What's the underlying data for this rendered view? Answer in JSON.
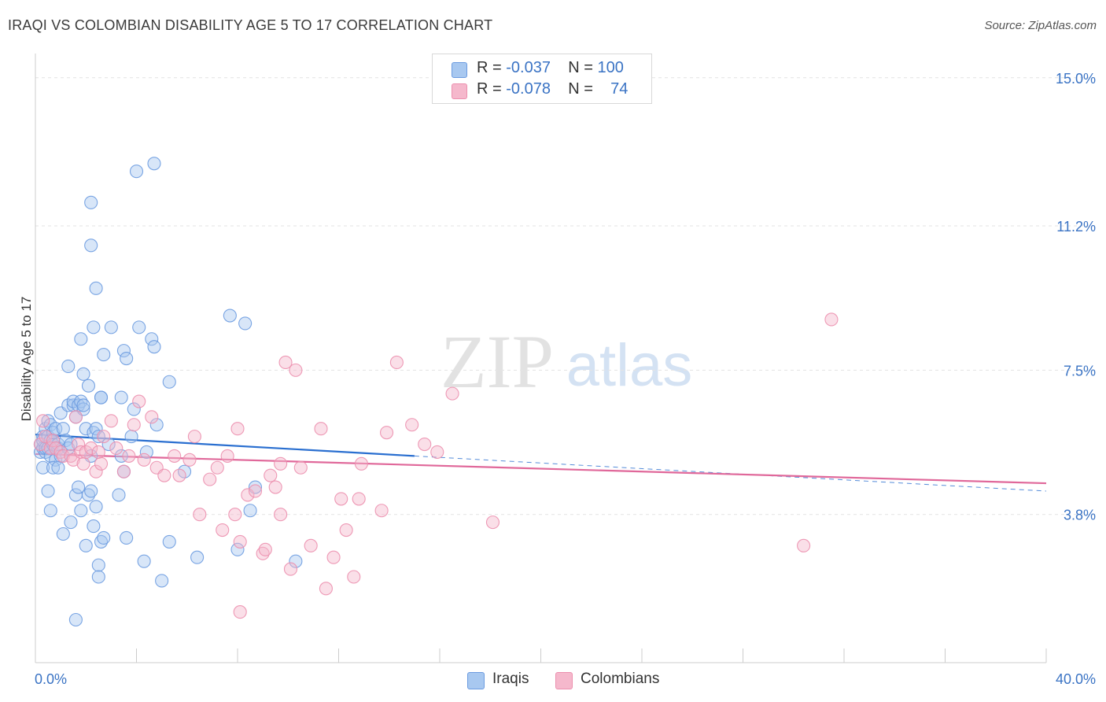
{
  "header": {
    "title": "IRAQI VS COLOMBIAN DISABILITY AGE 5 TO 17 CORRELATION CHART",
    "source": "Source: ZipAtlas.com"
  },
  "watermark": {
    "zip": "ZIP",
    "atlas": "atlas"
  },
  "legend": {
    "rows": [
      {
        "r_label": "R = ",
        "r_value": "-0.037",
        "n_label": "N = ",
        "n_value": "100",
        "color": "#a8c8f0"
      },
      {
        "r_label": "R = ",
        "r_value": "-0.078",
        "n_label": "N = ",
        "n_value": "74",
        "color": "#f5b8cc"
      }
    ]
  },
  "bottom_legend": [
    {
      "label": "Iraqis",
      "color": "#a8c8f0"
    },
    {
      "label": "Colombians",
      "color": "#f5b8cc"
    }
  ],
  "colors": {
    "iraqi_fill": "#a8c8f0",
    "iraqi_stroke": "#6b9be0",
    "iraqi_line": "#2a6fd0",
    "colombian_fill": "#f5b8cc",
    "colombian_stroke": "#ec8fae",
    "colombian_line": "#e0689a",
    "tick_label": "#3a73c4"
  },
  "chart_data": {
    "type": "scatter",
    "title": "IRAQI VS COLOMBIAN DISABILITY AGE 5 TO 17 CORRELATION CHART",
    "xlabel": "",
    "ylabel": "Disability Age 5 to 17",
    "xlim": [
      0,
      40
    ],
    "ylim": [
      0,
      15.5
    ],
    "x_ticks": [
      0,
      40
    ],
    "x_tick_labels": [
      "0.0%",
      "40.0%"
    ],
    "y_ticks": [
      3.8,
      7.5,
      11.2,
      15.0
    ],
    "y_tick_labels": [
      "3.8%",
      "7.5%",
      "11.2%",
      "15.0%"
    ],
    "grid": true,
    "series": [
      {
        "name": "Iraqis",
        "points": [
          [
            0.2,
            5.6
          ],
          [
            0.2,
            5.4
          ],
          [
            0.3,
            5.8
          ],
          [
            0.3,
            5.5
          ],
          [
            0.3,
            5.7
          ],
          [
            0.4,
            5.4
          ],
          [
            0.4,
            5.5
          ],
          [
            0.4,
            6.0
          ],
          [
            0.5,
            5.5
          ],
          [
            0.5,
            6.2
          ],
          [
            0.5,
            5.8
          ],
          [
            0.6,
            5.3
          ],
          [
            0.6,
            5.7
          ],
          [
            0.6,
            6.1
          ],
          [
            0.7,
            5.6
          ],
          [
            0.7,
            5.9
          ],
          [
            0.8,
            5.2
          ],
          [
            0.8,
            6.0
          ],
          [
            0.9,
            5.5
          ],
          [
            0.9,
            5.6
          ],
          [
            1.0,
            5.3
          ],
          [
            1.0,
            6.4
          ],
          [
            1.1,
            6.0
          ],
          [
            1.2,
            5.7
          ],
          [
            1.3,
            5.5
          ],
          [
            1.3,
            6.6
          ],
          [
            1.4,
            5.6
          ],
          [
            1.5,
            6.6
          ],
          [
            1.5,
            6.7
          ],
          [
            1.6,
            6.3
          ],
          [
            1.7,
            6.6
          ],
          [
            1.8,
            6.7
          ],
          [
            1.9,
            6.5
          ],
          [
            2.0,
            6.0
          ],
          [
            2.1,
            7.1
          ],
          [
            2.2,
            5.3
          ],
          [
            2.3,
            5.9
          ],
          [
            2.4,
            6.0
          ],
          [
            2.5,
            5.8
          ],
          [
            2.6,
            6.8
          ],
          [
            0.3,
            5.0
          ],
          [
            0.5,
            4.4
          ],
          [
            0.7,
            5.0
          ],
          [
            0.9,
            5.0
          ],
          [
            0.6,
            3.9
          ],
          [
            1.1,
            3.3
          ],
          [
            1.4,
            3.6
          ],
          [
            1.6,
            4.3
          ],
          [
            1.7,
            4.5
          ],
          [
            1.8,
            3.9
          ],
          [
            2.0,
            3.0
          ],
          [
            2.1,
            4.3
          ],
          [
            2.3,
            3.5
          ],
          [
            2.4,
            4.0
          ],
          [
            2.5,
            2.5
          ],
          [
            2.5,
            2.2
          ],
          [
            2.6,
            3.1
          ],
          [
            2.7,
            3.2
          ],
          [
            2.9,
            5.6
          ],
          [
            3.3,
            4.3
          ],
          [
            3.4,
            5.3
          ],
          [
            3.5,
            4.9
          ],
          [
            3.6,
            3.2
          ],
          [
            3.9,
            6.5
          ],
          [
            4.3,
            2.6
          ],
          [
            4.4,
            5.4
          ],
          [
            4.8,
            6.1
          ],
          [
            5.0,
            2.1
          ],
          [
            5.3,
            3.1
          ],
          [
            5.9,
            4.9
          ],
          [
            6.4,
            2.7
          ],
          [
            7.7,
            8.9
          ],
          [
            8.0,
            2.9
          ],
          [
            8.5,
            3.9
          ],
          [
            8.7,
            4.5
          ],
          [
            10.3,
            2.6
          ],
          [
            1.3,
            7.6
          ],
          [
            1.9,
            7.4
          ],
          [
            2.6,
            6.8
          ],
          [
            2.7,
            7.9
          ],
          [
            3.0,
            8.6
          ],
          [
            3.4,
            6.8
          ],
          [
            3.5,
            8.0
          ],
          [
            3.6,
            7.8
          ],
          [
            4.1,
            8.6
          ],
          [
            4.6,
            8.3
          ],
          [
            4.7,
            8.1
          ],
          [
            5.3,
            7.2
          ],
          [
            2.2,
            10.7
          ],
          [
            2.4,
            9.6
          ],
          [
            2.2,
            11.8
          ],
          [
            4.0,
            12.6
          ],
          [
            4.7,
            12.8
          ],
          [
            8.3,
            8.7
          ],
          [
            2.3,
            8.6
          ],
          [
            1.8,
            8.3
          ],
          [
            1.9,
            6.6
          ],
          [
            3.8,
            5.8
          ],
          [
            1.6,
            1.1
          ],
          [
            2.2,
            4.4
          ]
        ],
        "trend": {
          "x0": 0,
          "y0": 5.85,
          "x1": 15,
          "y1": 5.3,
          "x_dash_end": 40,
          "y_dash_end": 4.4
        }
      },
      {
        "name": "Colombians",
        "points": [
          [
            0.2,
            5.6
          ],
          [
            0.3,
            6.2
          ],
          [
            0.4,
            5.8
          ],
          [
            0.6,
            5.5
          ],
          [
            0.7,
            5.7
          ],
          [
            0.8,
            5.5
          ],
          [
            1.0,
            5.4
          ],
          [
            1.1,
            5.3
          ],
          [
            1.4,
            5.3
          ],
          [
            1.5,
            5.2
          ],
          [
            1.6,
            6.3
          ],
          [
            1.7,
            5.6
          ],
          [
            1.8,
            5.4
          ],
          [
            1.9,
            5.1
          ],
          [
            2.0,
            5.4
          ],
          [
            2.2,
            5.5
          ],
          [
            2.4,
            4.9
          ],
          [
            2.5,
            5.4
          ],
          [
            2.7,
            5.8
          ],
          [
            3.0,
            6.2
          ],
          [
            3.2,
            5.5
          ],
          [
            3.5,
            4.9
          ],
          [
            3.7,
            5.3
          ],
          [
            3.9,
            6.1
          ],
          [
            4.1,
            6.7
          ],
          [
            4.3,
            5.2
          ],
          [
            4.6,
            6.3
          ],
          [
            4.8,
            5.0
          ],
          [
            5.1,
            4.8
          ],
          [
            5.5,
            5.3
          ],
          [
            5.7,
            4.8
          ],
          [
            6.1,
            5.2
          ],
          [
            6.3,
            5.8
          ],
          [
            6.5,
            3.8
          ],
          [
            6.9,
            4.7
          ],
          [
            7.2,
            5.0
          ],
          [
            7.4,
            3.4
          ],
          [
            7.6,
            5.3
          ],
          [
            7.9,
            3.8
          ],
          [
            8.0,
            6.0
          ],
          [
            8.4,
            4.3
          ],
          [
            8.7,
            4.4
          ],
          [
            9.0,
            2.8
          ],
          [
            9.1,
            2.9
          ],
          [
            9.3,
            4.8
          ],
          [
            9.5,
            4.5
          ],
          [
            9.7,
            5.1
          ],
          [
            9.9,
            7.7
          ],
          [
            10.1,
            2.4
          ],
          [
            10.3,
            7.5
          ],
          [
            10.5,
            5.0
          ],
          [
            10.9,
            3.0
          ],
          [
            11.3,
            6.0
          ],
          [
            11.5,
            1.9
          ],
          [
            11.8,
            2.7
          ],
          [
            12.1,
            4.2
          ],
          [
            12.3,
            3.4
          ],
          [
            12.6,
            2.2
          ],
          [
            12.9,
            5.1
          ],
          [
            13.7,
            3.9
          ],
          [
            13.9,
            5.9
          ],
          [
            14.3,
            7.7
          ],
          [
            14.9,
            6.1
          ],
          [
            15.4,
            5.6
          ],
          [
            15.9,
            5.4
          ],
          [
            16.5,
            6.9
          ],
          [
            18.1,
            3.6
          ],
          [
            30.4,
            3.0
          ],
          [
            31.5,
            8.8
          ],
          [
            9.7,
            3.8
          ],
          [
            2.6,
            5.1
          ],
          [
            8.1,
            1.3
          ],
          [
            8.1,
            3.1
          ],
          [
            12.8,
            4.2
          ]
        ],
        "trend": {
          "x0": 0,
          "y0": 5.35,
          "x1": 40,
          "y1": 4.6
        }
      }
    ]
  }
}
